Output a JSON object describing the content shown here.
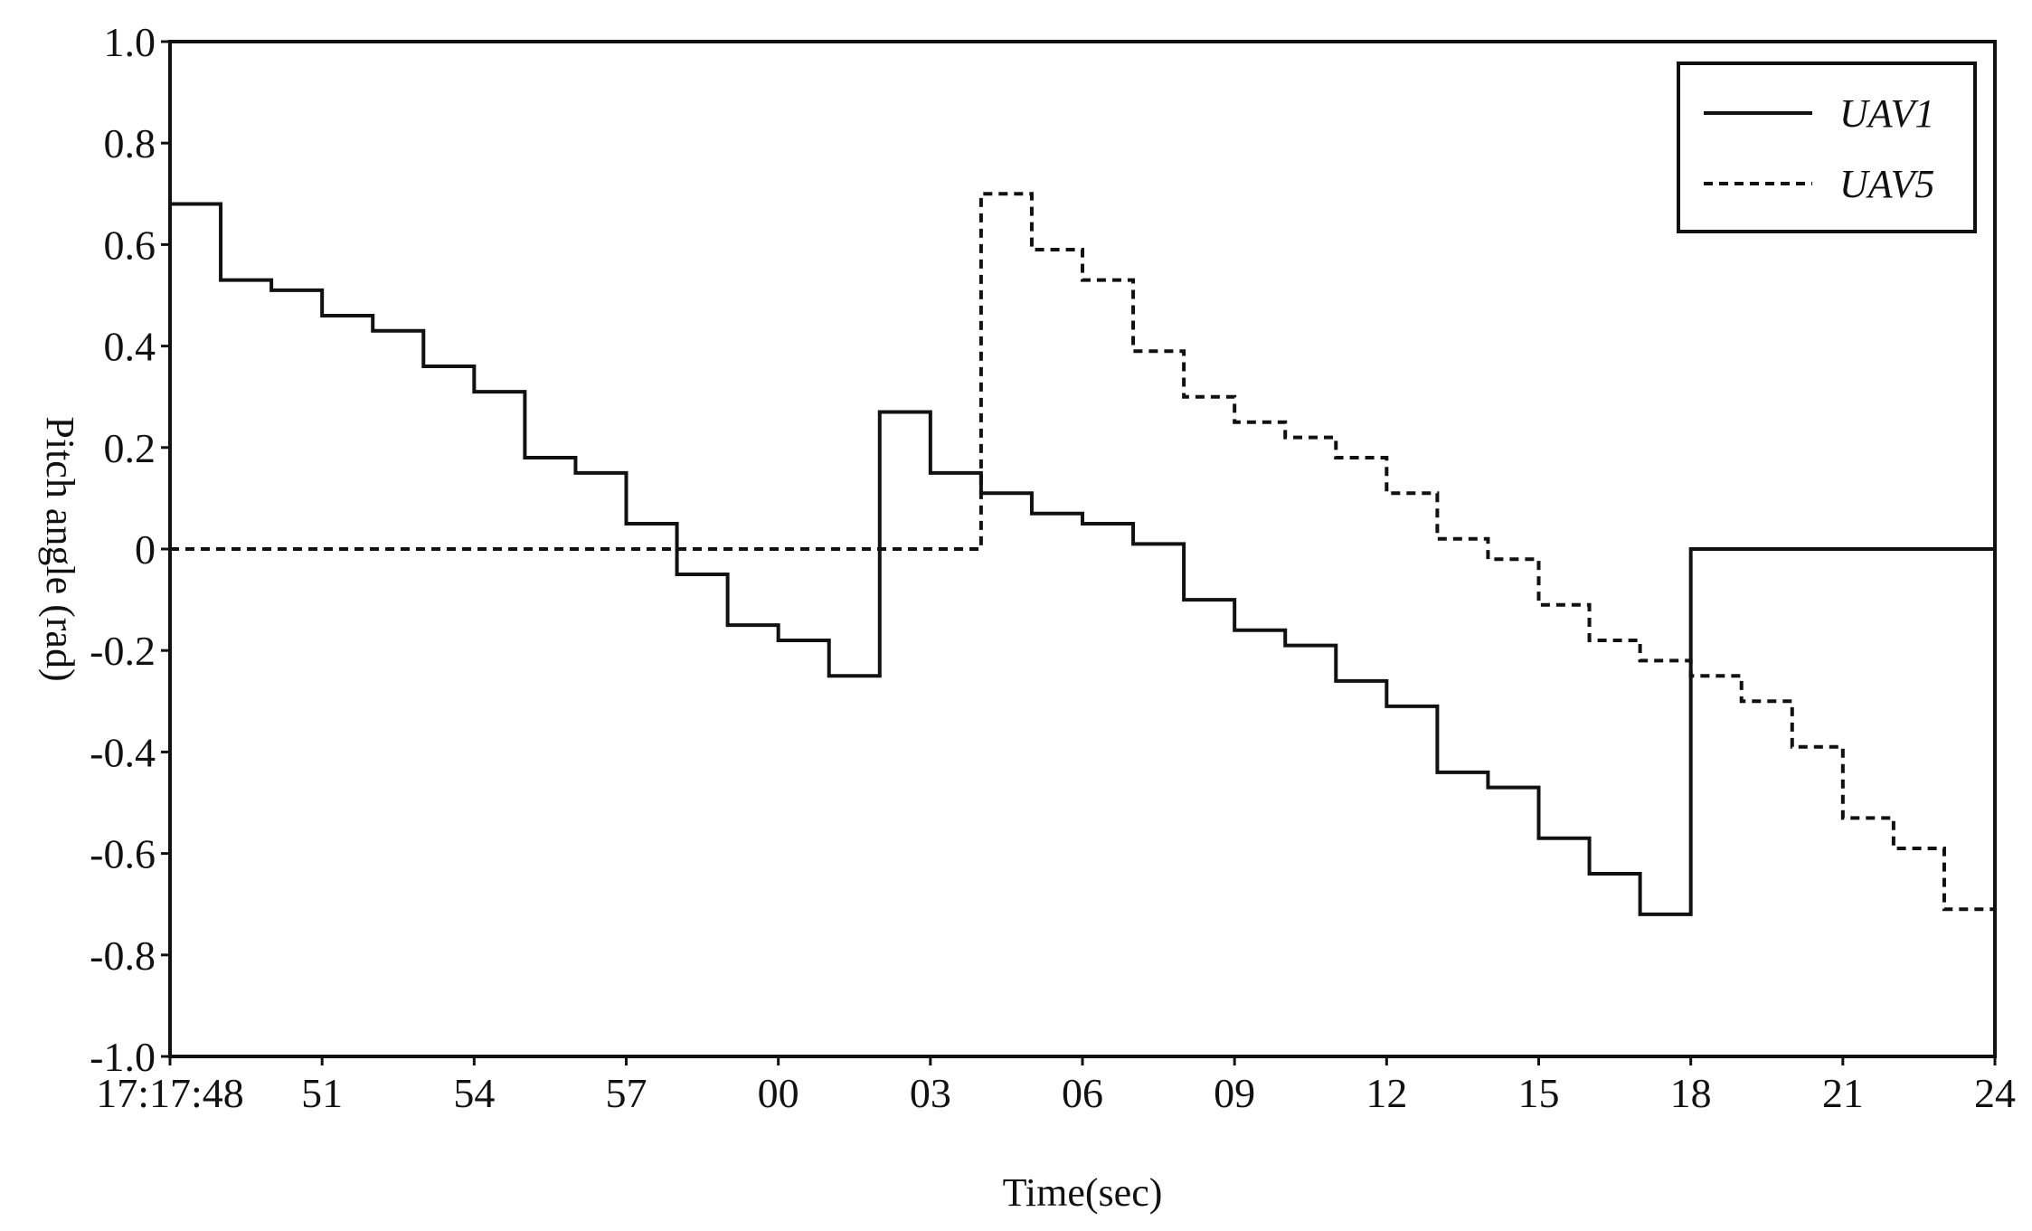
{
  "chart_data": {
    "type": "line",
    "step": "post",
    "xlabel": "Time(sec)",
    "ylabel": "Pitch angle (rad)",
    "xlim": [
      0,
      36
    ],
    "ylim": [
      -1.0,
      1.0
    ],
    "x_ticks": [
      {
        "value": 0,
        "label": "17:17:48"
      },
      {
        "value": 3,
        "label": "51"
      },
      {
        "value": 6,
        "label": "54"
      },
      {
        "value": 9,
        "label": "57"
      },
      {
        "value": 12,
        "label": "00"
      },
      {
        "value": 15,
        "label": "03"
      },
      {
        "value": 18,
        "label": "06"
      },
      {
        "value": 21,
        "label": "09"
      },
      {
        "value": 24,
        "label": "12"
      },
      {
        "value": 27,
        "label": "15"
      },
      {
        "value": 30,
        "label": "18"
      },
      {
        "value": 33,
        "label": "21"
      },
      {
        "value": 36,
        "label": "24"
      }
    ],
    "y_ticks": [
      {
        "value": 1.0,
        "label": "1.0"
      },
      {
        "value": 0.8,
        "label": "0.8"
      },
      {
        "value": 0.6,
        "label": "0.6"
      },
      {
        "value": 0.4,
        "label": "0.4"
      },
      {
        "value": 0.2,
        "label": "0.2"
      },
      {
        "value": 0.0,
        "label": "0"
      },
      {
        "value": -0.2,
        "label": "-0.2"
      },
      {
        "value": -0.4,
        "label": "-0.4"
      },
      {
        "value": -0.6,
        "label": "-0.6"
      },
      {
        "value": -0.8,
        "label": "-0.8"
      },
      {
        "value": -1.0,
        "label": "-1.0"
      }
    ],
    "grid": false,
    "legend": {
      "position": "top-right"
    },
    "series": [
      {
        "name": "UAV1",
        "style": "solid",
        "color": "#111111",
        "x": [
          0,
          1,
          2,
          3,
          4,
          5,
          6,
          7,
          8,
          9,
          10,
          11,
          12,
          13,
          14,
          15,
          16,
          17,
          18,
          19,
          20,
          21,
          22,
          23,
          24,
          25,
          26,
          27,
          28,
          29,
          30,
          31,
          36
        ],
        "y": [
          0.68,
          0.53,
          0.51,
          0.46,
          0.43,
          0.36,
          0.31,
          0.18,
          0.15,
          0.05,
          -0.05,
          -0.15,
          -0.18,
          -0.25,
          0.27,
          0.15,
          0.11,
          0.07,
          0.05,
          0.01,
          -0.1,
          -0.16,
          -0.19,
          -0.26,
          -0.31,
          -0.44,
          -0.47,
          -0.57,
          -0.64,
          -0.72,
          0.0,
          0.0,
          0.0
        ]
      },
      {
        "name": "UAV5",
        "style": "dashed",
        "color": "#111111",
        "x": [
          0,
          16,
          17,
          18,
          19,
          20,
          21,
          22,
          23,
          24,
          25,
          26,
          27,
          28,
          29,
          30,
          31,
          32,
          33,
          34,
          35,
          36
        ],
        "y": [
          0.0,
          0.7,
          0.59,
          0.53,
          0.39,
          0.3,
          0.25,
          0.22,
          0.18,
          0.11,
          0.02,
          -0.02,
          -0.11,
          -0.18,
          -0.22,
          -0.25,
          -0.3,
          -0.39,
          -0.53,
          -0.59,
          -0.71,
          -0.71
        ]
      }
    ]
  }
}
